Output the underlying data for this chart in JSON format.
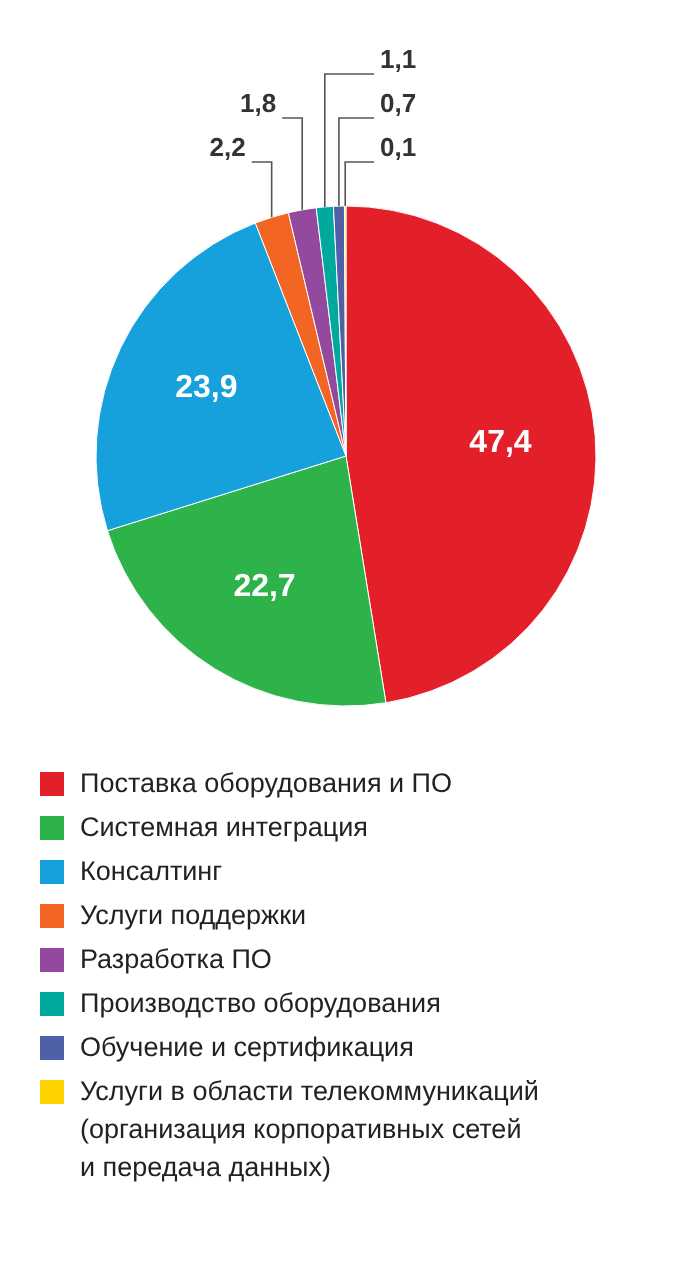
{
  "chart_data": {
    "type": "pie",
    "categories": [
      "Поставка оборудования и ПО",
      "Системная интеграция",
      "Консалтинг",
      "Услуги поддержки",
      "Разработка ПО",
      "Производство оборудования",
      "Обучение и сертификация",
      "Услуги в области телекоммуникаций (организация корпоративных сетей и передача данных)"
    ],
    "values": [
      47.4,
      22.7,
      23.9,
      2.2,
      1.8,
      1.1,
      0.7,
      0.1
    ],
    "value_labels": [
      "47,4",
      "22,7",
      "23,9",
      "2,2",
      "1,8",
      "1,1",
      "0,7",
      "0,1"
    ],
    "colors": [
      "#e3202a",
      "#2db34a",
      "#17a1dc",
      "#f26522",
      "#92499e",
      "#00a99d",
      "#4f5fa8",
      "#ffd200"
    ],
    "legend": "bottom"
  }
}
